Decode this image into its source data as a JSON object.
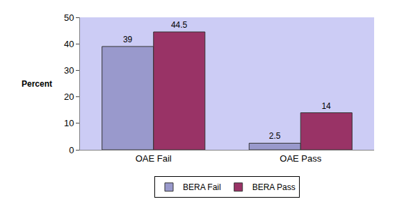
{
  "chart_data": {
    "type": "bar",
    "y_label": "Percent",
    "categories": [
      "OAE Fail",
      "OAE Pass"
    ],
    "series": [
      {
        "name": "BERA Fail",
        "color": "#9999cc",
        "values": [
          39,
          2.5
        ]
      },
      {
        "name": "BERA Pass",
        "color": "#993366",
        "values": [
          44.5,
          14
        ]
      }
    ],
    "ylim": [
      0,
      50
    ],
    "yticks": [
      0,
      10,
      20,
      30,
      40,
      50
    ],
    "grid": false,
    "legend": "bottom",
    "data_labels": true
  }
}
